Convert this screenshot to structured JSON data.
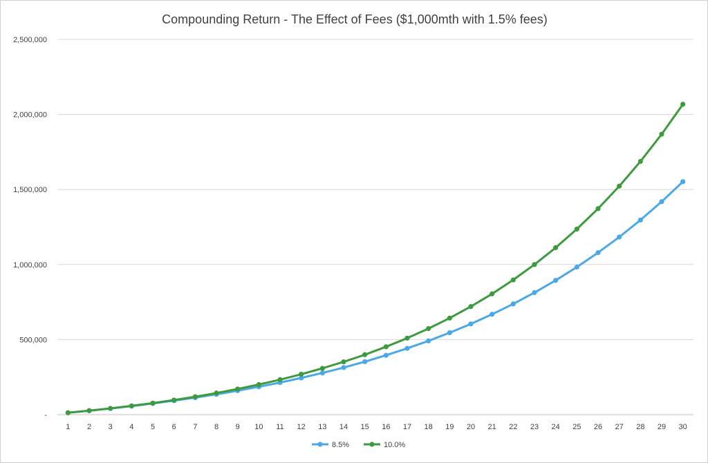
{
  "chart_data": {
    "type": "line",
    "title": "Compounding Return - The Effect of Fees ($1,000mth with 1.5% fees)",
    "xlabel": "",
    "ylabel": "",
    "ylim": [
      0,
      2500000
    ],
    "yticks": [
      0,
      500000,
      1000000,
      1500000,
      2000000,
      2500000
    ],
    "ytick_labels": [
      "-",
      "500,000",
      "1,000,000",
      "1,500,000",
      "2,000,000",
      "2,500,000"
    ],
    "categories": [
      "1",
      "2",
      "3",
      "4",
      "5",
      "6",
      "7",
      "8",
      "9",
      "10",
      "11",
      "12",
      "13",
      "14",
      "15",
      "16",
      "17",
      "18",
      "19",
      "20",
      "21",
      "22",
      "23",
      "24",
      "25",
      "26",
      "27",
      "28",
      "29",
      "30"
    ],
    "grid": true,
    "legend": "bottom",
    "series": [
      {
        "name": "8.5%",
        "color": "#4aa8e8",
        "values": [
          12500,
          26060,
          40770,
          56730,
          74050,
          92840,
          113230,
          135350,
          159350,
          185390,
          213640,
          244290,
          277550,
          313630,
          352780,
          395260,
          441350,
          491360,
          545620,
          604490,
          668360,
          737660,
          812850,
          894430,
          982950,
          1079000,
          1183200,
          1296300,
          1418900,
          1552000
        ]
      },
      {
        "name": "10.0%",
        "color": "#3d9a3d",
        "values": [
          12570,
          26400,
          41610,
          58340,
          76740,
          96990,
          119250,
          143750,
          170690,
          200330,
          232930,
          268800,
          308250,
          351650,
          399390,
          451900,
          509670,
          573200,
          643100,
          719970,
          804540,
          897560,
          999890,
          1112460,
          1236270,
          1372480,
          1522300,
          1687100,
          1868390,
          2067800
        ]
      }
    ]
  }
}
